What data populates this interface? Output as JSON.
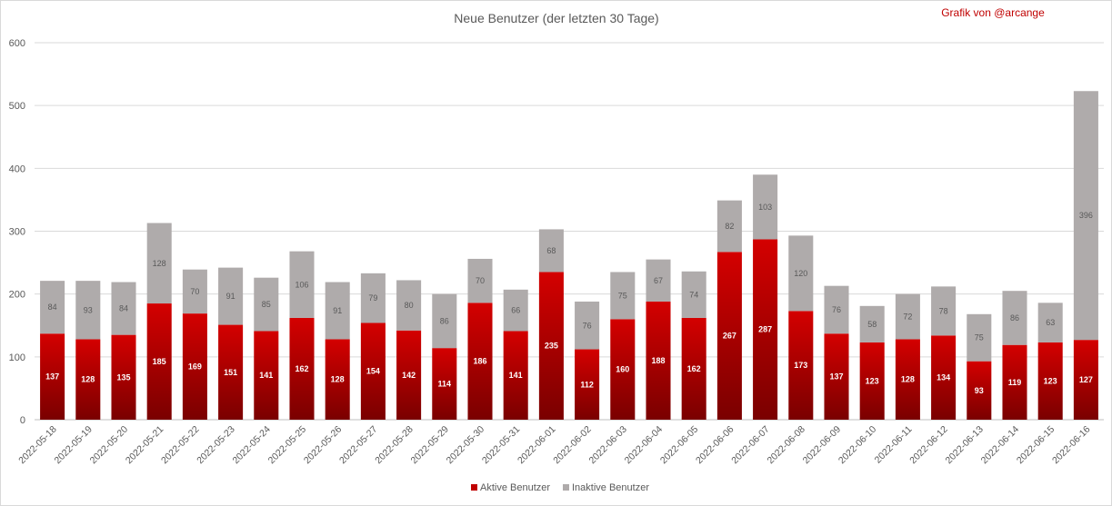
{
  "chart_data": {
    "type": "bar",
    "stacked": true,
    "title": "Neue Benutzer (der letzten 30 Tage)",
    "credit": "Grafik von @arcange",
    "categories": [
      "2022-05-18",
      "2022-05-19",
      "2022-05-20",
      "2022-05-21",
      "2022-05-22",
      "2022-05-23",
      "2022-05-24",
      "2022-05-25",
      "2022-05-26",
      "2022-05-27",
      "2022-05-28",
      "2022-05-29",
      "2022-05-30",
      "2022-05-31",
      "2022-06-01",
      "2022-06-02",
      "2022-06-03",
      "2022-06-04",
      "2022-06-05",
      "2022-06-06",
      "2022-06-07",
      "2022-06-08",
      "2022-06-09",
      "2022-06-10",
      "2022-06-11",
      "2022-06-12",
      "2022-06-13",
      "2022-06-14",
      "2022-06-15",
      "2022-06-16"
    ],
    "series": [
      {
        "name": "Aktive Benutzer",
        "color": "#c00000",
        "values": [
          137,
          128,
          135,
          185,
          169,
          151,
          141,
          162,
          128,
          154,
          142,
          114,
          186,
          141,
          235,
          112,
          160,
          188,
          162,
          267,
          287,
          173,
          137,
          123,
          128,
          134,
          93,
          119,
          123,
          127
        ]
      },
      {
        "name": "Inaktive Benutzer",
        "color": "#afabab",
        "values": [
          84,
          93,
          84,
          128,
          70,
          91,
          85,
          106,
          91,
          79,
          80,
          86,
          70,
          66,
          68,
          76,
          75,
          67,
          74,
          82,
          103,
          120,
          76,
          58,
          72,
          78,
          75,
          86,
          63,
          396
        ]
      }
    ],
    "yticks": [
      0,
      100,
      200,
      300,
      400,
      500,
      600
    ],
    "ylim": [
      0,
      600
    ],
    "grid": true,
    "legend_position": "bottom"
  }
}
